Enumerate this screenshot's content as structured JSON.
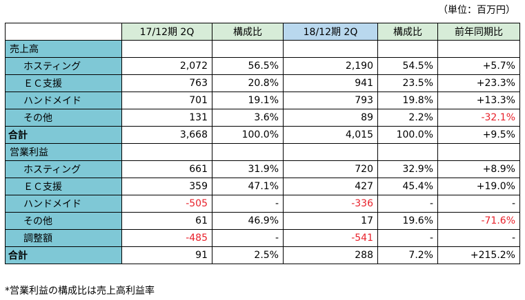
{
  "unit_label": "（単位：百万円）",
  "columns": [
    "17/12期 2Q",
    "構成比",
    "18/12期 2Q",
    "構成比",
    "前年同期比"
  ],
  "rows": [
    {
      "label": "売上高",
      "type": "section",
      "cells": [
        "",
        "",
        "",
        "",
        ""
      ]
    },
    {
      "label": "ホスティング",
      "type": "sub",
      "cells": [
        "2,072",
        "56.5%",
        "2,190",
        "54.5%",
        "+5.7%"
      ]
    },
    {
      "label": "ＥＣ支援",
      "type": "sub",
      "cells": [
        "763",
        "20.8%",
        "941",
        "23.5%",
        "+23.3%"
      ]
    },
    {
      "label": "ハンドメイド",
      "type": "sub",
      "cells": [
        "701",
        "19.1%",
        "793",
        "19.8%",
        "+13.3%"
      ]
    },
    {
      "label": "その他",
      "type": "sub",
      "cells": [
        "131",
        "3.6%",
        "89",
        "2.2%",
        "-32.1%"
      ]
    },
    {
      "label": "合計",
      "type": "total",
      "cells": [
        "3,668",
        "100.0%",
        "4,015",
        "100.0%",
        "+9.5%"
      ]
    },
    {
      "label": "営業利益",
      "type": "section",
      "cells": [
        "",
        "",
        "",
        "",
        ""
      ]
    },
    {
      "label": "ホスティング",
      "type": "sub",
      "cells": [
        "661",
        "31.9%",
        "720",
        "32.9%",
        "+8.9%"
      ]
    },
    {
      "label": "ＥＣ支援",
      "type": "sub",
      "cells": [
        "359",
        "47.1%",
        "427",
        "45.4%",
        "+19.0%"
      ]
    },
    {
      "label": "ハンドメイド",
      "type": "sub",
      "cells": [
        "-505",
        "-",
        "-336",
        "-",
        "-"
      ]
    },
    {
      "label": "その他",
      "type": "sub",
      "cells": [
        "61",
        "46.9%",
        "17",
        "19.6%",
        "-71.6%"
      ]
    },
    {
      "label": "調整額",
      "type": "sub",
      "cells": [
        "-485",
        "-",
        "-541",
        "-",
        "-"
      ]
    },
    {
      "label": "合計",
      "type": "total",
      "cells": [
        "91",
        "2.5%",
        "288",
        "7.2%",
        "+215.2%"
      ]
    }
  ],
  "footnote": "*営業利益の構成比は売上高利益率",
  "colors": {
    "label_bg": "#7fc8d6",
    "header_17_bg": "#d7ecd8",
    "header_18_bg": "#b9d8ee",
    "negative": "#e8202a"
  }
}
